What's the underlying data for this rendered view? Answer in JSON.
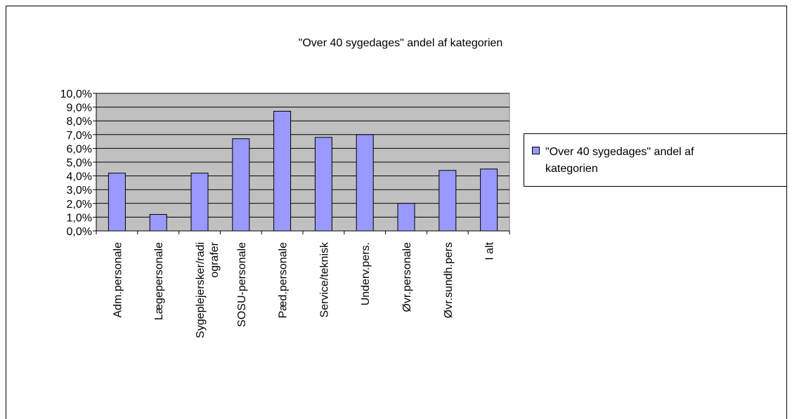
{
  "chart_data": {
    "type": "bar",
    "title": "\"Over 40 sygedages\" andel af kategorien",
    "categories": [
      "Adm.personale",
      "Lægepersonale",
      "Sygeplejersker/radiografer",
      "SOSU-personale",
      "Pæd.personale",
      "Service/teknisk",
      "Underv.pers.",
      "Øvr.personale",
      "Øvr.sundh.pers",
      "I alt"
    ],
    "series": [
      {
        "name": "\"Over 40 sygedages\" andel af kategorien",
        "color": "#9999ff",
        "values": [
          4.2,
          1.2,
          4.2,
          6.7,
          8.7,
          6.8,
          7.0,
          2.0,
          4.4,
          4.5
        ]
      }
    ],
    "ylim": [
      0,
      10
    ],
    "yticks": [
      {
        "value": 0,
        "label": "0,0%"
      },
      {
        "value": 1,
        "label": "1,0%"
      },
      {
        "value": 2,
        "label": "2,0%"
      },
      {
        "value": 3,
        "label": "3,0%"
      },
      {
        "value": 4,
        "label": "4,0%"
      },
      {
        "value": 5,
        "label": "5,0%"
      },
      {
        "value": 6,
        "label": "6,0%"
      },
      {
        "value": 7,
        "label": "7,0%"
      },
      {
        "value": 8,
        "label": "8,0%"
      },
      {
        "value": 9,
        "label": "9,0%"
      },
      {
        "value": 10,
        "label": "10,0%"
      }
    ],
    "grid": true,
    "legend": "right"
  }
}
